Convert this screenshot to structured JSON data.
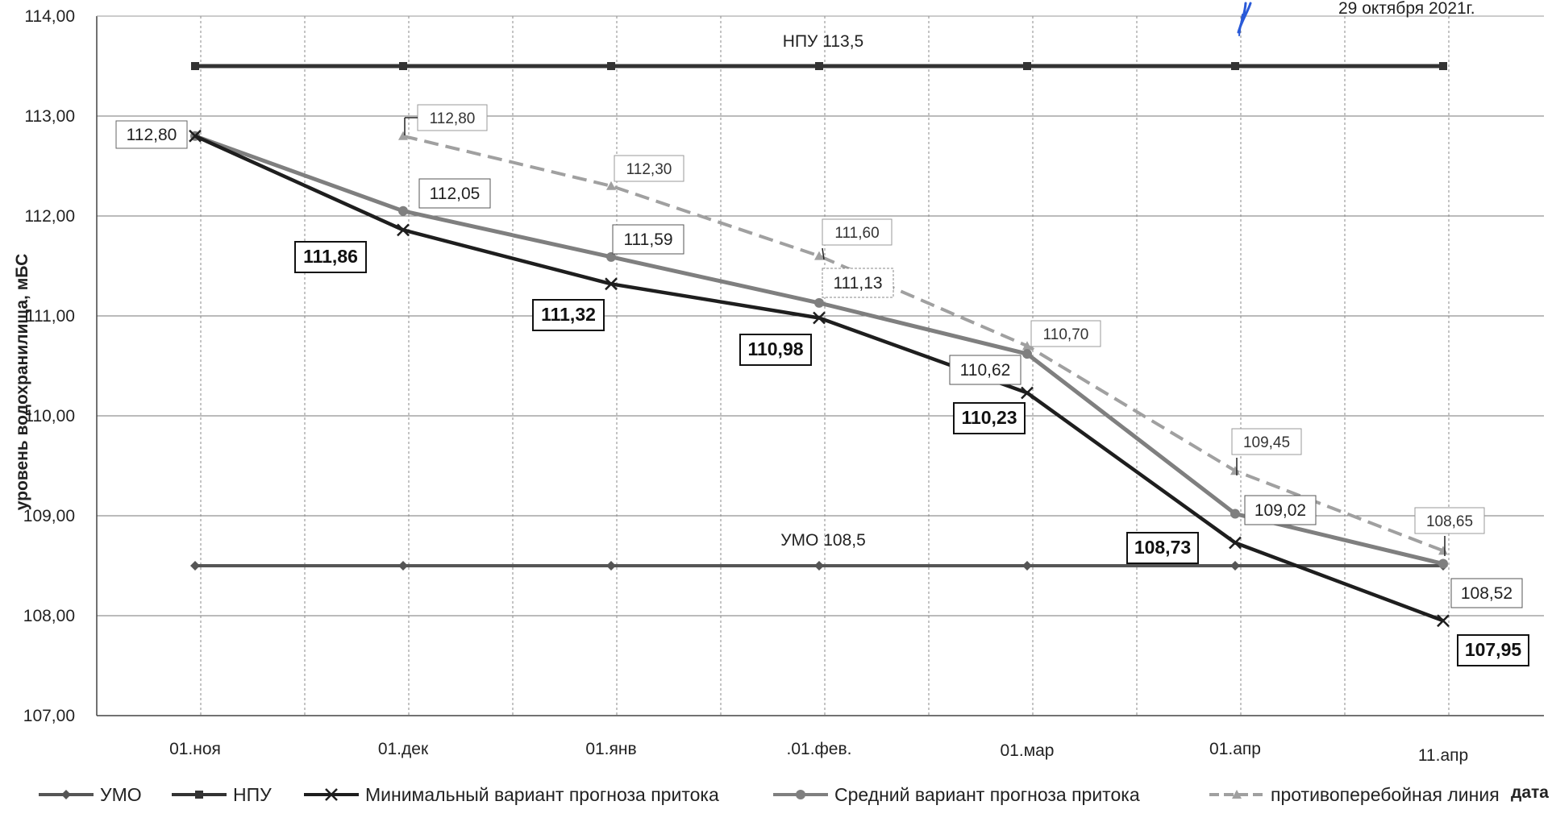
{
  "date_text": "29 октября  2021г.",
  "chart_data": {
    "type": "line",
    "title": "",
    "xlabel": "дата",
    "ylabel": "уровень водохранилища, мБС",
    "ylim": [
      107,
      114
    ],
    "y_ticks": [
      "107,00",
      "108,00",
      "109,00",
      "110,00",
      "111,00",
      "112,00",
      "113,00",
      "114,00"
    ],
    "categories": [
      "01.ноя",
      "01.дек",
      "01.янв",
      ".01.фев.",
      "01.мар",
      "01.апр",
      "11.апр"
    ],
    "grid": true,
    "legend_position": "bottom",
    "annotations": [
      {
        "text": "НПУ 113,5",
        "x": ".01.фев.",
        "y": 113.5
      },
      {
        "text": "УМО 108,5",
        "x": ".01.фев.",
        "y": 108.5
      }
    ],
    "series": [
      {
        "name": "УМО",
        "marker": "diamond",
        "color": "#555555",
        "dash": "solid",
        "values": [
          108.5,
          108.5,
          108.5,
          108.5,
          108.5,
          108.5,
          108.5
        ]
      },
      {
        "name": "НПУ",
        "marker": "square",
        "color": "#333333",
        "dash": "solid",
        "values": [
          113.5,
          113.5,
          113.5,
          113.5,
          113.5,
          113.5,
          113.5
        ]
      },
      {
        "name": "Минимальный вариант прогноза притока",
        "marker": "x",
        "color": "#1e1e1e",
        "dash": "solid",
        "values": [
          112.8,
          111.86,
          111.32,
          110.98,
          110.23,
          108.73,
          107.95
        ],
        "labels": [
          "112,80",
          "111,86",
          "111,32",
          "110,98",
          "110,23",
          "108,73",
          "107,95"
        ]
      },
      {
        "name": "Средний вариант прогноза притока",
        "marker": "circle",
        "color": "#7f7f7f",
        "dash": "solid",
        "values": [
          112.8,
          112.05,
          111.59,
          111.13,
          110.62,
          109.02,
          108.52
        ],
        "labels": [
          null,
          "112,05",
          "111,59",
          "111,13",
          "110,62",
          "109,02",
          "108,52"
        ]
      },
      {
        "name": "противоперебойная линия",
        "marker": "triangle",
        "color": "#a0a0a0",
        "dash": "dashed",
        "values": [
          null,
          112.8,
          112.3,
          111.6,
          110.7,
          109.45,
          108.65
        ],
        "labels": [
          null,
          "112,80",
          "112,30",
          "111,60",
          "110,70",
          "109,45",
          "108,65"
        ]
      }
    ]
  }
}
